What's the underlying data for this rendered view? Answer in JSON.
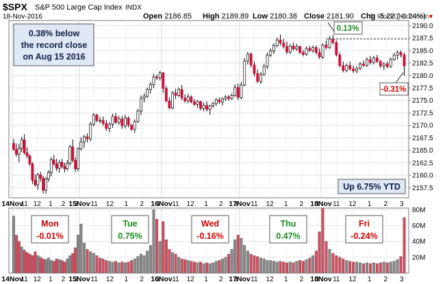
{
  "header": {
    "symbol": "$SPX",
    "name": "S&P 500 Large Cap Index",
    "exchange": "INDX",
    "date": "18-Nov-2016",
    "open_label": "Open",
    "open": "2186.85",
    "high_label": "High",
    "high": "2189.89",
    "low_label": "Low",
    "low": "2180.38",
    "close_label": "Close",
    "close": "2181.90",
    "chg_label": "Chg",
    "chg": "-5.22 (-0.24%)",
    "chg_marker": "▼",
    "watermark": "© StockCharts.com"
  },
  "annotations": {
    "record_lines": [
      "0.38% below",
      "the record close",
      "on Aug 15 2016"
    ],
    "record_pct": "0.13%",
    "end_pct": "-0.31%",
    "ytd": "Up 6.75% YTD"
  },
  "days": [
    {
      "name": "Mon",
      "chg": "-0.01%",
      "color": "#cc0000"
    },
    {
      "name": "Tue",
      "chg": "0.75%",
      "color": "#1a8a1a"
    },
    {
      "name": "Wed",
      "chg": "-0.16%",
      "color": "#cc0000"
    },
    {
      "name": "Thu",
      "chg": "0.47%",
      "color": "#1a8a1a"
    },
    {
      "name": "Fri",
      "chg": "-0.24%",
      "color": "#cc0000"
    }
  ],
  "colors": {
    "up": "#ffffff",
    "down": "#d0103a",
    "vol_up": "#888888",
    "vol_down": "#d84a5e",
    "positive": "#1a8a1a",
    "negative": "#cc0000"
  },
  "chart_data": {
    "type": "candlestick",
    "price_axis": {
      "ticks": [
        "2190.0",
        "2187.5",
        "2185.0",
        "2182.5",
        "2180.0",
        "2177.5",
        "2175.0",
        "2172.5",
        "2170.0",
        "2167.5",
        "2165.0",
        "2162.5",
        "2160.0",
        "2157.5"
      ],
      "ylim": [
        2155.5,
        2191.0
      ]
    },
    "volume_axis": {
      "ticks": [
        "80M",
        "60M",
        "40M",
        "20M"
      ],
      "ylim": [
        0,
        82
      ]
    },
    "x_tick_labels": [
      "14Nov",
      "11",
      "12",
      "1",
      "2",
      "3",
      "15Nov",
      "11",
      "12",
      "1",
      "2",
      "3",
      "16Nov",
      "11",
      "12",
      "1",
      "2",
      "3",
      "17Nov",
      "11",
      "12",
      "1",
      "2",
      "3",
      "18Nov",
      "11",
      "12",
      "1",
      "2",
      "3"
    ],
    "grid": true,
    "candles": [
      [
        2166.4,
        2167.3,
        2164.9,
        2165.2
      ],
      [
        2165.2,
        2166.4,
        2163.7,
        2164.2
      ],
      [
        2164.2,
        2166.3,
        2162.6,
        2165.4
      ],
      [
        2165.4,
        2167.7,
        2164.7,
        2167.1
      ],
      [
        2167.1,
        2168.2,
        2164.2,
        2164.5
      ],
      [
        2164.5,
        2165.6,
        2163.4,
        2163.9
      ],
      [
        2163.9,
        2164.2,
        2161.9,
        2162.3
      ],
      [
        2162.3,
        2162.6,
        2158.3,
        2159.0
      ],
      [
        2159.0,
        2160.2,
        2157.7,
        2158.1
      ],
      [
        2158.1,
        2160.5,
        2157.1,
        2160.1
      ],
      [
        2160.1,
        2160.7,
        2158.7,
        2159.4
      ],
      [
        2159.4,
        2159.9,
        2156.4,
        2157.0
      ],
      [
        2157.0,
        2159.7,
        2156.3,
        2159.3
      ],
      [
        2159.3,
        2161.0,
        2158.7,
        2160.6
      ],
      [
        2160.6,
        2163.6,
        2159.8,
        2163.1
      ],
      [
        2163.1,
        2164.1,
        2161.9,
        2162.3
      ],
      [
        2162.3,
        2163.3,
        2160.8,
        2161.4
      ],
      [
        2161.4,
        2163.0,
        2160.5,
        2162.6
      ],
      [
        2162.6,
        2163.3,
        2161.4,
        2161.8
      ],
      [
        2161.8,
        2162.5,
        2160.6,
        2161.3
      ],
      [
        2161.3,
        2163.1,
        2160.9,
        2162.4
      ],
      [
        2162.4,
        2166.1,
        2162.0,
        2165.7
      ],
      [
        2165.7,
        2167.2,
        2162.6,
        2163.0
      ],
      [
        2163.0,
        2163.6,
        2160.7,
        2161.3
      ],
      [
        2161.3,
        2165.6,
        2160.8,
        2165.3
      ],
      [
        2165.3,
        2167.6,
        2165.0,
        2166.7
      ],
      [
        2166.7,
        2168.1,
        2165.5,
        2167.7
      ],
      [
        2167.7,
        2168.4,
        2166.6,
        2167.3
      ],
      [
        2167.3,
        2170.7,
        2166.8,
        2170.2
      ],
      [
        2170.2,
        2172.5,
        2169.8,
        2172.1
      ],
      [
        2172.1,
        2172.3,
        2170.6,
        2171.0
      ],
      [
        2171.0,
        2171.7,
        2170.4,
        2171.0
      ],
      [
        2171.0,
        2171.8,
        2169.9,
        2170.4
      ],
      [
        2170.4,
        2171.1,
        2168.9,
        2169.4
      ],
      [
        2169.4,
        2170.6,
        2168.6,
        2170.2
      ],
      [
        2170.2,
        2172.3,
        2169.5,
        2171.8
      ],
      [
        2171.8,
        2172.5,
        2170.3,
        2170.6
      ],
      [
        2170.6,
        2171.9,
        2170.1,
        2171.3
      ],
      [
        2171.3,
        2171.9,
        2169.3,
        2169.9
      ],
      [
        2169.9,
        2172.1,
        2169.4,
        2171.5
      ],
      [
        2171.5,
        2171.8,
        2169.6,
        2170.1
      ],
      [
        2170.1,
        2170.2,
        2168.9,
        2169.2
      ],
      [
        2169.2,
        2171.2,
        2168.5,
        2170.8
      ],
      [
        2170.8,
        2173.3,
        2170.5,
        2172.9
      ],
      [
        2172.9,
        2176.0,
        2172.1,
        2175.4
      ],
      [
        2175.4,
        2176.4,
        2174.6,
        2175.8
      ],
      [
        2175.8,
        2177.6,
        2175.5,
        2177.2
      ],
      [
        2177.2,
        2178.7,
        2176.4,
        2178.2
      ],
      [
        2178.2,
        2180.3,
        2177.5,
        2179.7
      ],
      [
        2179.7,
        2180.2,
        2179.1,
        2179.5
      ],
      [
        2179.5,
        2180.9,
        2179.0,
        2180.5
      ],
      [
        2180.5,
        2180.7,
        2176.5,
        2177.4
      ],
      [
        2177.4,
        2177.9,
        2174.6,
        2174.9
      ],
      [
        2174.9,
        2175.6,
        2173.2,
        2173.5
      ],
      [
        2173.5,
        2176.9,
        2173.2,
        2176.5
      ],
      [
        2176.5,
        2177.3,
        2175.3,
        2176.0
      ],
      [
        2176.0,
        2177.6,
        2175.7,
        2177.2
      ],
      [
        2177.2,
        2178.1,
        2175.1,
        2175.5
      ],
      [
        2175.5,
        2176.2,
        2174.5,
        2174.9
      ],
      [
        2174.9,
        2176.3,
        2174.4,
        2175.7
      ],
      [
        2175.7,
        2176.0,
        2174.4,
        2174.7
      ],
      [
        2174.7,
        2175.3,
        2173.9,
        2174.2
      ],
      [
        2174.2,
        2175.1,
        2173.5,
        2174.8
      ],
      [
        2174.8,
        2174.9,
        2173.0,
        2173.4
      ],
      [
        2173.4,
        2174.6,
        2172.8,
        2174.0
      ],
      [
        2174.0,
        2174.8,
        2172.8,
        2173.2
      ],
      [
        2173.2,
        2174.1,
        2172.1,
        2173.9
      ],
      [
        2173.9,
        2174.7,
        2173.5,
        2174.4
      ],
      [
        2174.4,
        2175.5,
        2173.9,
        2175.1
      ],
      [
        2175.1,
        2175.6,
        2174.3,
        2174.7
      ],
      [
        2174.7,
        2175.6,
        2174.0,
        2175.3
      ],
      [
        2175.3,
        2176.1,
        2174.9,
        2175.7
      ],
      [
        2175.7,
        2176.1,
        2174.9,
        2175.4
      ],
      [
        2175.4,
        2176.4,
        2175.1,
        2176.0
      ],
      [
        2176.0,
        2178.2,
        2175.7,
        2177.6
      ],
      [
        2177.6,
        2178.4,
        2175.1,
        2175.6
      ],
      [
        2175.6,
        2178.7,
        2175.2,
        2178.1
      ],
      [
        2178.1,
        2183.5,
        2177.8,
        2182.9
      ],
      [
        2182.9,
        2184.7,
        2182.2,
        2184.3
      ],
      [
        2184.3,
        2184.6,
        2181.6,
        2182.1
      ],
      [
        2182.1,
        2182.8,
        2179.8,
        2180.4
      ],
      [
        2180.4,
        2181.2,
        2178.5,
        2178.8
      ],
      [
        2178.8,
        2180.7,
        2178.3,
        2180.2
      ],
      [
        2180.2,
        2182.3,
        2179.9,
        2181.8
      ],
      [
        2181.8,
        2184.6,
        2181.3,
        2184.1
      ],
      [
        2184.1,
        2185.4,
        2183.7,
        2184.9
      ],
      [
        2184.9,
        2186.5,
        2184.3,
        2186.0
      ],
      [
        2186.0,
        2187.6,
        2185.6,
        2187.1
      ],
      [
        2187.1,
        2188.2,
        2186.0,
        2186.5
      ],
      [
        2186.5,
        2187.3,
        2185.4,
        2185.8
      ],
      [
        2185.8,
        2186.8,
        2184.3,
        2184.7
      ],
      [
        2184.7,
        2186.3,
        2184.3,
        2185.9
      ],
      [
        2185.9,
        2186.6,
        2185.0,
        2185.3
      ],
      [
        2185.3,
        2186.3,
        2184.9,
        2185.8
      ],
      [
        2185.8,
        2186.0,
        2184.3,
        2184.6
      ],
      [
        2184.6,
        2185.1,
        2183.8,
        2184.2
      ],
      [
        2184.2,
        2185.8,
        2183.9,
        2185.4
      ],
      [
        2185.4,
        2185.9,
        2184.7,
        2185.0
      ],
      [
        2185.0,
        2186.0,
        2184.5,
        2185.6
      ],
      [
        2185.6,
        2186.0,
        2184.2,
        2184.6
      ],
      [
        2184.6,
        2185.4,
        2183.3,
        2183.7
      ],
      [
        2183.7,
        2186.4,
        2183.3,
        2186.1
      ],
      [
        2186.1,
        2187.0,
        2185.2,
        2185.6
      ],
      [
        2185.6,
        2187.9,
        2185.3,
        2187.3
      ],
      [
        2187.3,
        2188.1,
        2186.2,
        2186.6
      ],
      [
        2186.6,
        2187.0,
        2183.8,
        2184.1
      ],
      [
        2184.1,
        2184.6,
        2181.6,
        2182.0
      ],
      [
        2182.0,
        2182.8,
        2180.6,
        2181.0
      ],
      [
        2181.0,
        2182.4,
        2180.6,
        2182.0
      ],
      [
        2182.0,
        2182.8,
        2181.0,
        2181.3
      ],
      [
        2181.3,
        2182.0,
        2180.5,
        2180.9
      ],
      [
        2180.9,
        2181.8,
        2180.4,
        2181.4
      ],
      [
        2181.4,
        2182.7,
        2181.1,
        2182.3
      ],
      [
        2182.3,
        2183.0,
        2181.7,
        2182.0
      ],
      [
        2182.0,
        2183.6,
        2181.7,
        2183.2
      ],
      [
        2183.2,
        2183.9,
        2182.2,
        2182.6
      ],
      [
        2182.6,
        2183.9,
        2182.2,
        2183.5
      ],
      [
        2183.5,
        2184.1,
        2182.5,
        2182.8
      ],
      [
        2182.8,
        2183.1,
        2181.5,
        2181.9
      ],
      [
        2181.9,
        2182.6,
        2181.1,
        2182.3
      ],
      [
        2182.3,
        2182.8,
        2181.4,
        2181.8
      ],
      [
        2181.8,
        2183.6,
        2181.5,
        2183.2
      ],
      [
        2183.2,
        2184.5,
        2182.9,
        2184.1
      ],
      [
        2184.1,
        2185.0,
        2183.2,
        2184.6
      ],
      [
        2184.6,
        2185.0,
        2183.6,
        2184.1
      ],
      [
        2184.1,
        2184.6,
        2179.9,
        2181.9
      ]
    ],
    "volumes": [
      [
        72,
        0
      ],
      [
        48,
        1
      ],
      [
        40,
        1
      ],
      [
        33,
        0
      ],
      [
        29,
        1
      ],
      [
        26,
        1
      ],
      [
        24,
        1
      ],
      [
        22,
        1
      ],
      [
        27,
        1
      ],
      [
        22,
        0
      ],
      [
        20,
        1
      ],
      [
        18,
        1
      ],
      [
        17,
        0
      ],
      [
        19,
        0
      ],
      [
        16,
        0
      ],
      [
        15,
        1
      ],
      [
        18,
        1
      ],
      [
        17,
        0
      ],
      [
        16,
        1
      ],
      [
        14,
        1
      ],
      [
        18,
        0
      ],
      [
        22,
        0
      ],
      [
        25,
        1
      ],
      [
        32,
        1
      ],
      [
        48,
        0
      ],
      [
        62,
        0
      ],
      [
        38,
        0
      ],
      [
        30,
        1
      ],
      [
        27,
        0
      ],
      [
        25,
        0
      ],
      [
        22,
        1
      ],
      [
        19,
        1
      ],
      [
        18,
        1
      ],
      [
        16,
        1
      ],
      [
        15,
        0
      ],
      [
        14,
        0
      ],
      [
        15,
        1
      ],
      [
        13,
        0
      ],
      [
        14,
        1
      ],
      [
        13,
        0
      ],
      [
        14,
        1
      ],
      [
        16,
        1
      ],
      [
        18,
        0
      ],
      [
        21,
        0
      ],
      [
        24,
        0
      ],
      [
        22,
        0
      ],
      [
        28,
        0
      ],
      [
        35,
        0
      ],
      [
        80,
        0
      ],
      [
        68,
        1
      ],
      [
        40,
        0
      ],
      [
        65,
        1
      ],
      [
        42,
        1
      ],
      [
        30,
        1
      ],
      [
        26,
        0
      ],
      [
        24,
        1
      ],
      [
        20,
        0
      ],
      [
        18,
        1
      ],
      [
        17,
        1
      ],
      [
        16,
        0
      ],
      [
        15,
        1
      ],
      [
        14,
        1
      ],
      [
        13,
        0
      ],
      [
        14,
        1
      ],
      [
        12,
        0
      ],
      [
        13,
        1
      ],
      [
        12,
        0
      ],
      [
        13,
        0
      ],
      [
        15,
        0
      ],
      [
        16,
        1
      ],
      [
        18,
        0
      ],
      [
        20,
        0
      ],
      [
        24,
        1
      ],
      [
        30,
        0
      ],
      [
        42,
        0
      ],
      [
        48,
        1
      ],
      [
        44,
        0
      ],
      [
        35,
        0
      ],
      [
        28,
        0
      ],
      [
        24,
        1
      ],
      [
        22,
        1
      ],
      [
        21,
        1
      ],
      [
        19,
        0
      ],
      [
        18,
        0
      ],
      [
        16,
        0
      ],
      [
        16,
        0
      ],
      [
        15,
        0
      ],
      [
        14,
        0
      ],
      [
        15,
        1
      ],
      [
        14,
        1
      ],
      [
        13,
        1
      ],
      [
        14,
        0
      ],
      [
        13,
        1
      ],
      [
        15,
        0
      ],
      [
        16,
        1
      ],
      [
        15,
        1
      ],
      [
        17,
        0
      ],
      [
        19,
        1
      ],
      [
        22,
        0
      ],
      [
        28,
        1
      ],
      [
        52,
        1
      ],
      [
        82,
        1
      ],
      [
        40,
        1
      ],
      [
        30,
        0
      ],
      [
        25,
        1
      ],
      [
        22,
        1
      ],
      [
        20,
        1
      ],
      [
        18,
        1
      ],
      [
        16,
        0
      ],
      [
        15,
        1
      ],
      [
        14,
        1
      ],
      [
        14,
        0
      ],
      [
        13,
        0
      ],
      [
        12,
        1
      ],
      [
        13,
        0
      ],
      [
        12,
        1
      ],
      [
        13,
        0
      ],
      [
        12,
        1
      ],
      [
        13,
        1
      ],
      [
        14,
        0
      ],
      [
        13,
        1
      ],
      [
        14,
        0
      ],
      [
        15,
        0
      ],
      [
        17,
        0
      ],
      [
        21,
        1
      ],
      [
        70,
        1
      ]
    ]
  }
}
